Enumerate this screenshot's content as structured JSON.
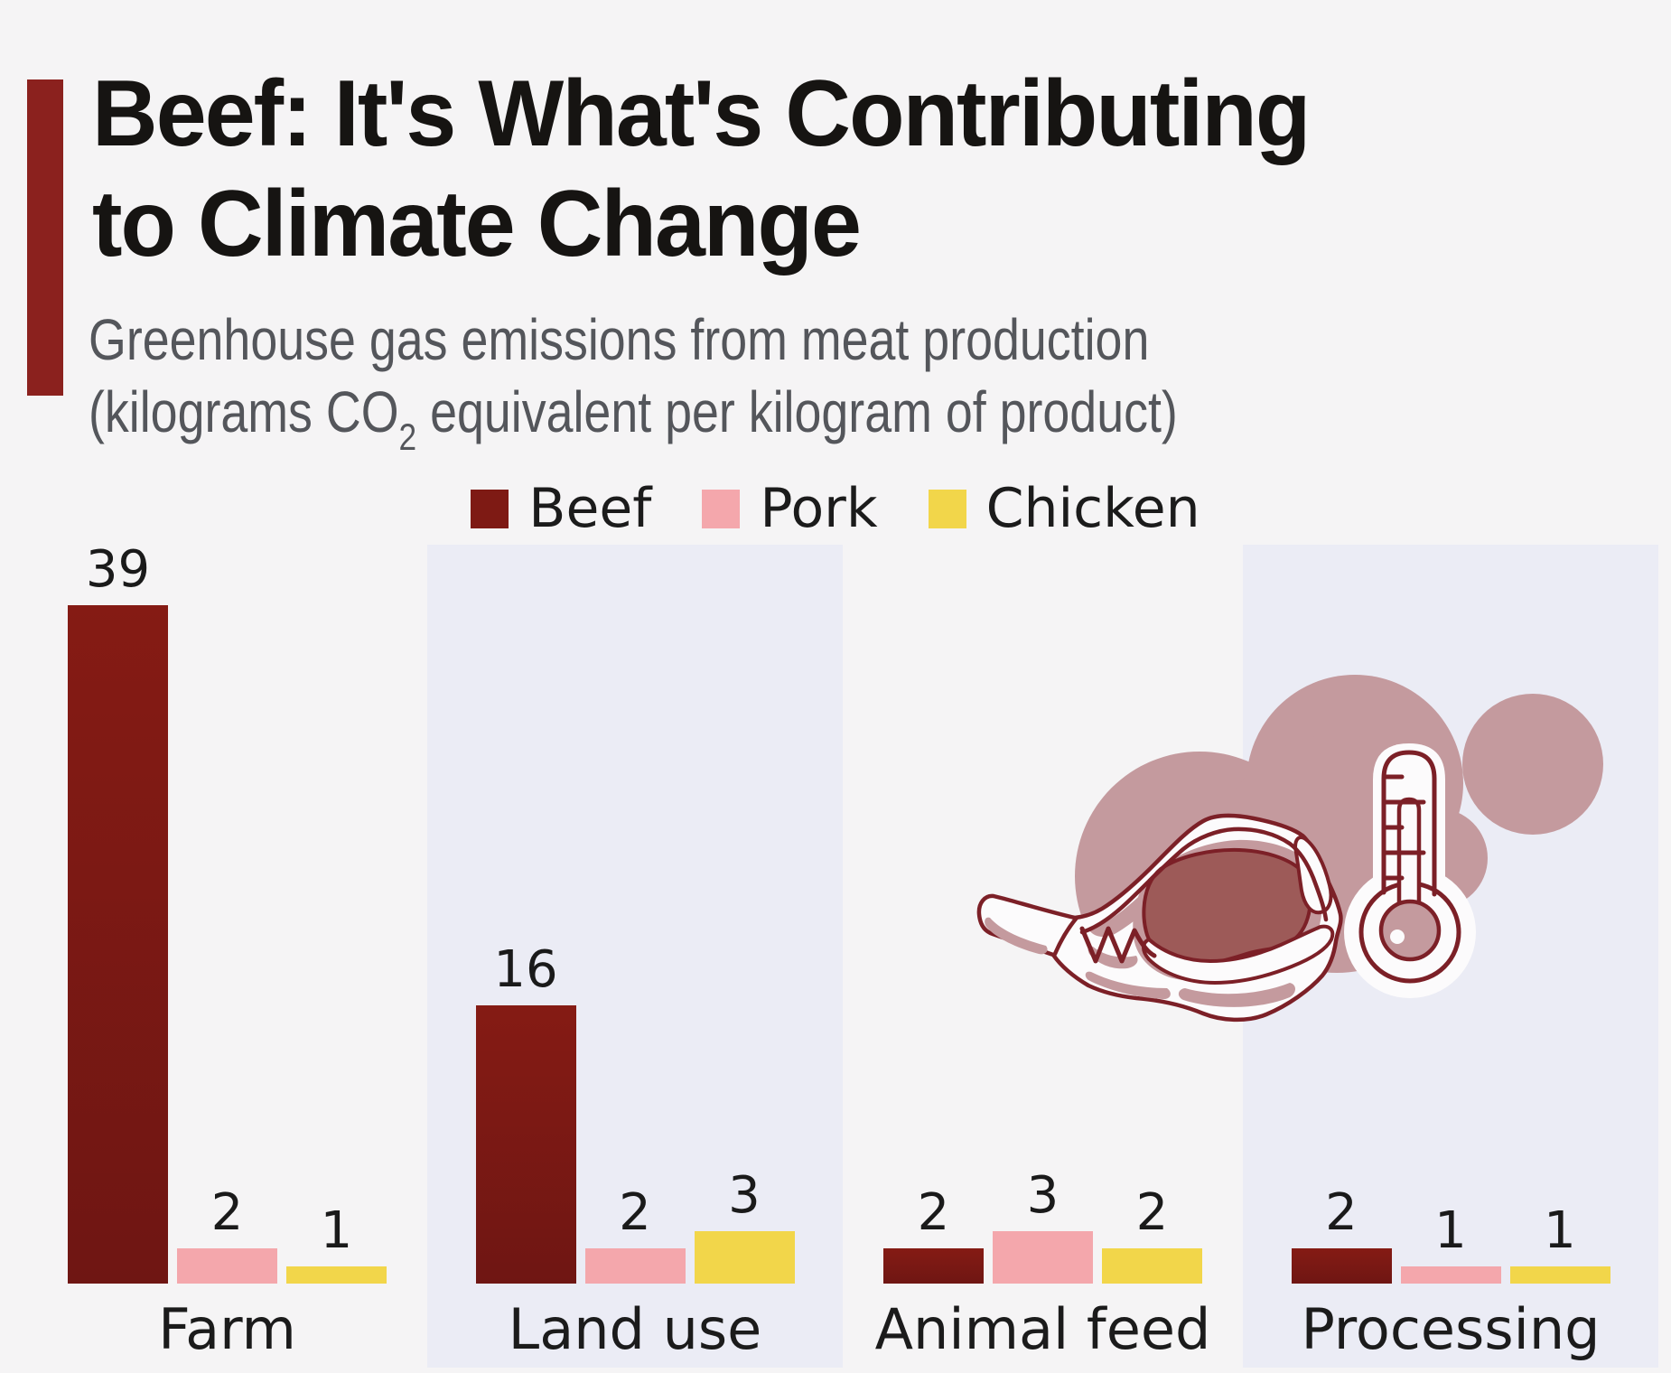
{
  "title": {
    "line1": "Beef: It's What's Contributing",
    "line2": "to Climate Change"
  },
  "subtitle": {
    "line1": "Greenhouse gas emissions from meat production",
    "line2_prefix": "(kilograms CO",
    "line2_sub": "2",
    "line2_suffix": " equivalent per kilogram of product)"
  },
  "legend": [
    {
      "label": "Beef",
      "color": "#7e1a14"
    },
    {
      "label": "Pork",
      "color": "#f4a7ac"
    },
    {
      "label": "Chicken",
      "color": "#f2d64a"
    }
  ],
  "chart_data": {
    "type": "bar",
    "title": "Beef: It's What's Contributing to Climate Change",
    "subtitle": "Greenhouse gas emissions from meat production (kilograms CO2 equivalent per kilogram of product)",
    "categories": [
      "Farm",
      "Land use",
      "Animal feed",
      "Processing"
    ],
    "series": [
      {
        "name": "Beef",
        "color": "#7e1a14",
        "color_top": "#851b14",
        "color_bottom": "#6f1613",
        "values": [
          39,
          16,
          2,
          2
        ]
      },
      {
        "name": "Pork",
        "color": "#f4a7ac",
        "values": [
          2,
          2,
          3,
          1
        ]
      },
      {
        "name": "Chicken",
        "color": "#f2d64a",
        "values": [
          1,
          3,
          2,
          1
        ]
      }
    ],
    "ylim": [
      0,
      42
    ],
    "grid": false,
    "legend_position": "top-center",
    "value_labels": true
  },
  "colors": {
    "background": "#f5f4f5",
    "band": "#ebecf5",
    "accent_bar": "#8b211e",
    "blob": "#c49a9e",
    "meat_dark": "#9d5a58",
    "illustration_line": "#7c2027",
    "illustration_white": "#fcfbfc",
    "text_dark": "#1a1a1a",
    "text_gray": "#54565b"
  },
  "icons": {
    "steak": "steak-illustration",
    "thermometer": "thermometer-icon"
  }
}
